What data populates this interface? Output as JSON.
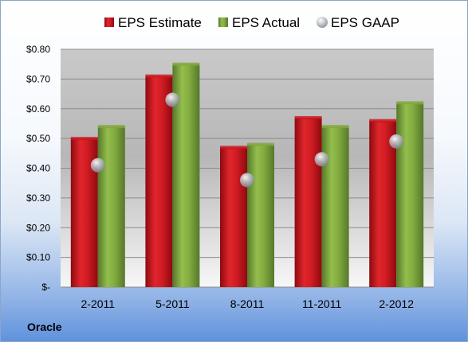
{
  "company": "Oracle",
  "colors": {
    "estimate": "#c8161d",
    "actual": "#7fa83a",
    "gaap": "#b8bcc4"
  },
  "chart_data": {
    "type": "bar",
    "title": "",
    "xlabel": "",
    "ylabel": "",
    "categories": [
      "2-2011",
      "5-2011",
      "8-2011",
      "11-2011",
      "2-2012"
    ],
    "ylim": [
      0,
      0.8
    ],
    "y_ticks": [
      0,
      0.1,
      0.2,
      0.3,
      0.4,
      0.5,
      0.6,
      0.7,
      0.8
    ],
    "y_tick_labels": [
      "$-",
      "$0.10",
      "$0.20",
      "$0.30",
      "$0.40",
      "$0.50",
      "$0.60",
      "$0.70",
      "$0.80"
    ],
    "grid": true,
    "legend_position": "top",
    "series": [
      {
        "name": "EPS Estimate",
        "kind": "bar",
        "values": [
          0.5,
          0.71,
          0.47,
          0.57,
          0.56
        ]
      },
      {
        "name": "EPS Actual",
        "kind": "bar",
        "values": [
          0.54,
          0.75,
          0.48,
          0.54,
          0.62
        ]
      },
      {
        "name": "EPS GAAP",
        "kind": "marker",
        "values": [
          0.41,
          0.63,
          0.36,
          0.43,
          0.49
        ]
      }
    ]
  }
}
